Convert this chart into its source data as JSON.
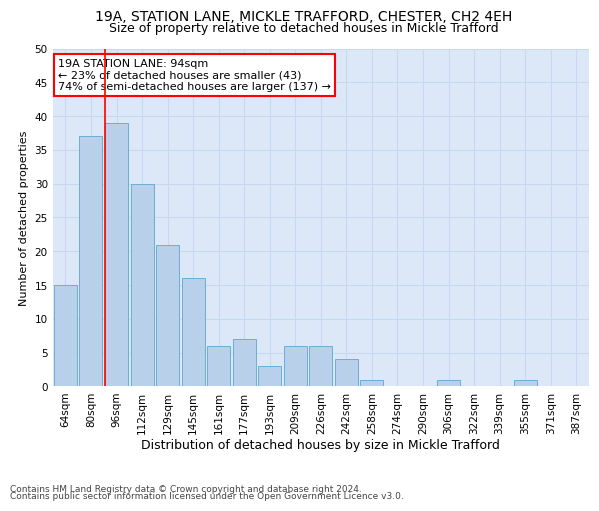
{
  "title1": "19A, STATION LANE, MICKLE TRAFFORD, CHESTER, CH2 4EH",
  "title2": "Size of property relative to detached houses in Mickle Trafford",
  "xlabel": "Distribution of detached houses by size in Mickle Trafford",
  "ylabel": "Number of detached properties",
  "footnote1": "Contains HM Land Registry data © Crown copyright and database right 2024.",
  "footnote2": "Contains public sector information licensed under the Open Government Licence v3.0.",
  "bin_labels": [
    "64sqm",
    "80sqm",
    "96sqm",
    "112sqm",
    "129sqm",
    "145sqm",
    "161sqm",
    "177sqm",
    "193sqm",
    "209sqm",
    "226sqm",
    "242sqm",
    "258sqm",
    "274sqm",
    "290sqm",
    "306sqm",
    "322sqm",
    "339sqm",
    "355sqm",
    "371sqm",
    "387sqm"
  ],
  "bar_values": [
    15,
    37,
    39,
    30,
    21,
    16,
    6,
    7,
    3,
    6,
    6,
    4,
    1,
    0,
    0,
    1,
    0,
    0,
    1,
    0,
    0
  ],
  "bar_color": "#b8d0ea",
  "bar_edge_color": "#6baed6",
  "annotation_line1": "19A STATION LANE: 94sqm",
  "annotation_line2": "← 23% of detached houses are smaller (43)",
  "annotation_line3": "74% of semi-detached houses are larger (137) →",
  "annotation_box_color": "white",
  "annotation_box_edge": "red",
  "vline_index": 2,
  "vline_color": "red",
  "ylim": [
    0,
    50
  ],
  "yticks": [
    0,
    5,
    10,
    15,
    20,
    25,
    30,
    35,
    40,
    45,
    50
  ],
  "grid_color": "#c8d8ee",
  "background_color": "#dce8f8",
  "title1_fontsize": 10,
  "title2_fontsize": 9,
  "xlabel_fontsize": 9,
  "ylabel_fontsize": 8,
  "tick_fontsize": 7.5,
  "annotation_fontsize": 8,
  "footnote_fontsize": 6.5
}
